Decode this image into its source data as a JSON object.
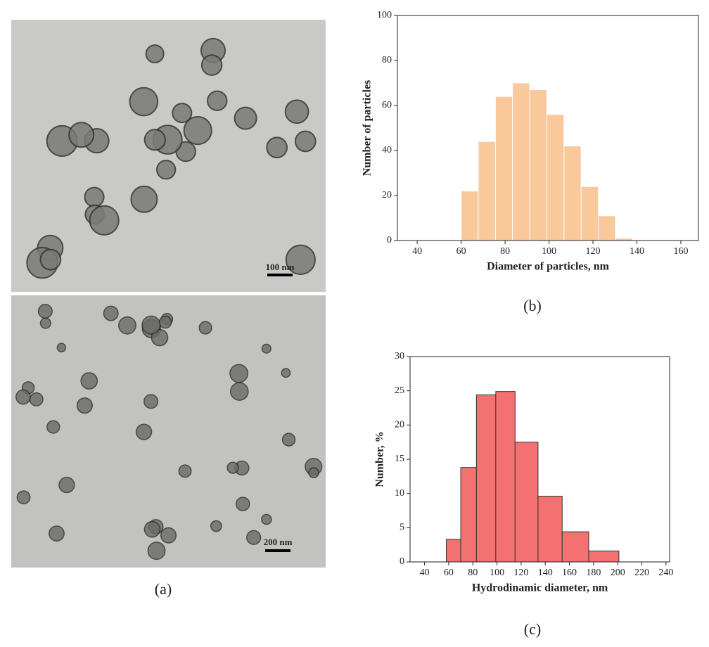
{
  "images": [
    {
      "scale_bar": "100 nm"
    },
    {
      "scale_bar": "200 nm"
    }
  ],
  "panel_labels": [
    "(a)",
    "(b)",
    "(c)"
  ],
  "chart_data": [
    {
      "type": "histogram",
      "ylabel": "Number of particles",
      "xlabel": "Diameter of particles, nm",
      "bins": [
        60,
        67.8,
        75.6,
        83.4,
        91.2,
        99,
        106.8,
        114.6,
        122.4,
        130.2,
        138
      ],
      "values": [
        22,
        44,
        64,
        70,
        67,
        56,
        42,
        24,
        11,
        1
      ],
      "color": "#f9c89b",
      "edgecolor": "#ffffff",
      "xlim": [
        31,
        168
      ],
      "xticks": [
        40,
        60,
        80,
        100,
        120,
        140,
        160
      ],
      "ylim": [
        0,
        100
      ],
      "yticks": [
        0,
        20,
        40,
        60,
        80,
        100
      ]
    },
    {
      "type": "histogram",
      "ylabel": "Number, %",
      "xlabel": "Hydrodinamic diameter, nm",
      "bins": [
        58,
        70,
        83,
        99,
        115,
        134,
        154,
        176,
        201
      ],
      "values": [
        3.3,
        13.8,
        24.4,
        24.9,
        17.5,
        9.6,
        4.4,
        1.6
      ],
      "color": "#f47171",
      "edgecolor": "#333333",
      "xlim": [
        28,
        243
      ],
      "xticks": [
        40,
        60,
        80,
        100,
        120,
        140,
        160,
        180,
        200,
        220,
        240
      ],
      "ylim": [
        0,
        30
      ],
      "yticks": [
        0,
        5,
        10,
        15,
        20,
        25,
        30
      ]
    }
  ]
}
